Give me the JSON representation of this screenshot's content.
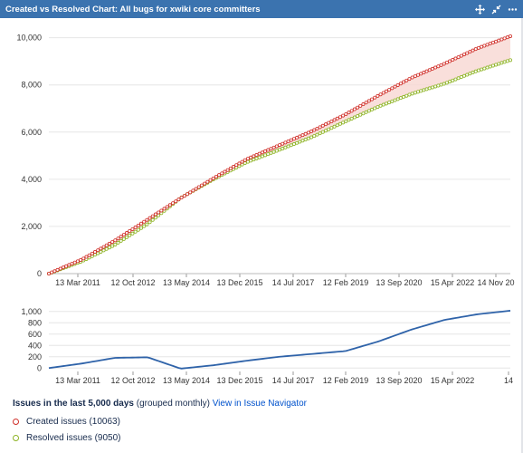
{
  "gadget": {
    "title": "Created vs Resolved Chart: All bugs for xwiki core committers",
    "icons": [
      "move-icon",
      "collapse-icon",
      "more-icon"
    ]
  },
  "colors": {
    "header": "#3b73af",
    "created": "#d0302a",
    "resolved": "#8db324",
    "fill": "#f8d7d2",
    "diff_line": "#2f63a9",
    "link": "#0052cc"
  },
  "chart_data": [
    {
      "type": "line",
      "x_tick_labels": [
        "13 Mar 2011",
        "12 Oct 2012",
        "13 May 2014",
        "13 Dec 2015",
        "14 Jul 2017",
        "12 Feb 2019",
        "13 Sep 2020",
        "15 Apr 2022",
        "14 Nov 20"
      ],
      "y_tick_labels": [
        "0",
        "2,000",
        "4,000",
        "6,000",
        "8,000",
        "10,000"
      ],
      "ylim": [
        0,
        10600
      ],
      "grid": true,
      "x_domain": [
        "Jan 2010",
        "Dec 2023"
      ],
      "samples_x": [
        "Jan 2010",
        "Jan 2011",
        "Jan 2012",
        "Jan 2013",
        "Jan 2014",
        "Jan 2015",
        "Jan 2016",
        "Jan 2017",
        "Jan 2018",
        "Jan 2019",
        "Jan 2020",
        "Jan 2021",
        "Jan 2022",
        "Jan 2023",
        "Dec 2023"
      ],
      "series": [
        {
          "name": "Created issues",
          "values": [
            0,
            600,
            1400,
            2300,
            3200,
            4050,
            4850,
            5450,
            6050,
            6750,
            7550,
            8300,
            8900,
            9550,
            10063
          ]
        },
        {
          "name": "Resolved issues",
          "values": [
            0,
            520,
            1220,
            2110,
            3210,
            4000,
            4720,
            5250,
            5800,
            6450,
            7080,
            7620,
            8050,
            8600,
            9050
          ]
        }
      ]
    },
    {
      "type": "line",
      "x_tick_labels": [
        "13 Mar 2011",
        "12 Oct 2012",
        "13 May 2014",
        "13 Dec 2015",
        "14 Jul 2017",
        "12 Feb 2019",
        "13 Sep 2020",
        "15 Apr 2022",
        "14"
      ],
      "y_tick_labels": [
        "0",
        "200",
        "400",
        "600",
        "800",
        "1,000"
      ],
      "ylim": [
        -60,
        1060
      ],
      "grid": true,
      "samples_x": [
        "Jan 2010",
        "Jan 2011",
        "Jan 2012",
        "Jan 2013",
        "Jan 2014",
        "Jan 2015",
        "Jan 2016",
        "Jan 2017",
        "Jan 2018",
        "Jan 2019",
        "Jan 2020",
        "Jan 2021",
        "Jan 2022",
        "Jan 2023",
        "Dec 2023"
      ],
      "series": [
        {
          "name": "",
          "values": [
            0,
            80,
            180,
            190,
            -10,
            50,
            130,
            200,
            250,
            300,
            470,
            680,
            850,
            950,
            1013
          ]
        }
      ]
    }
  ],
  "footer": {
    "issues_title": "Issues in the last 5,000 days",
    "grouped": "(grouped monthly)",
    "link": "View in Issue Navigator",
    "legend": [
      {
        "label": "Created issues (10063)"
      },
      {
        "label": "Resolved issues (9050)"
      }
    ]
  }
}
